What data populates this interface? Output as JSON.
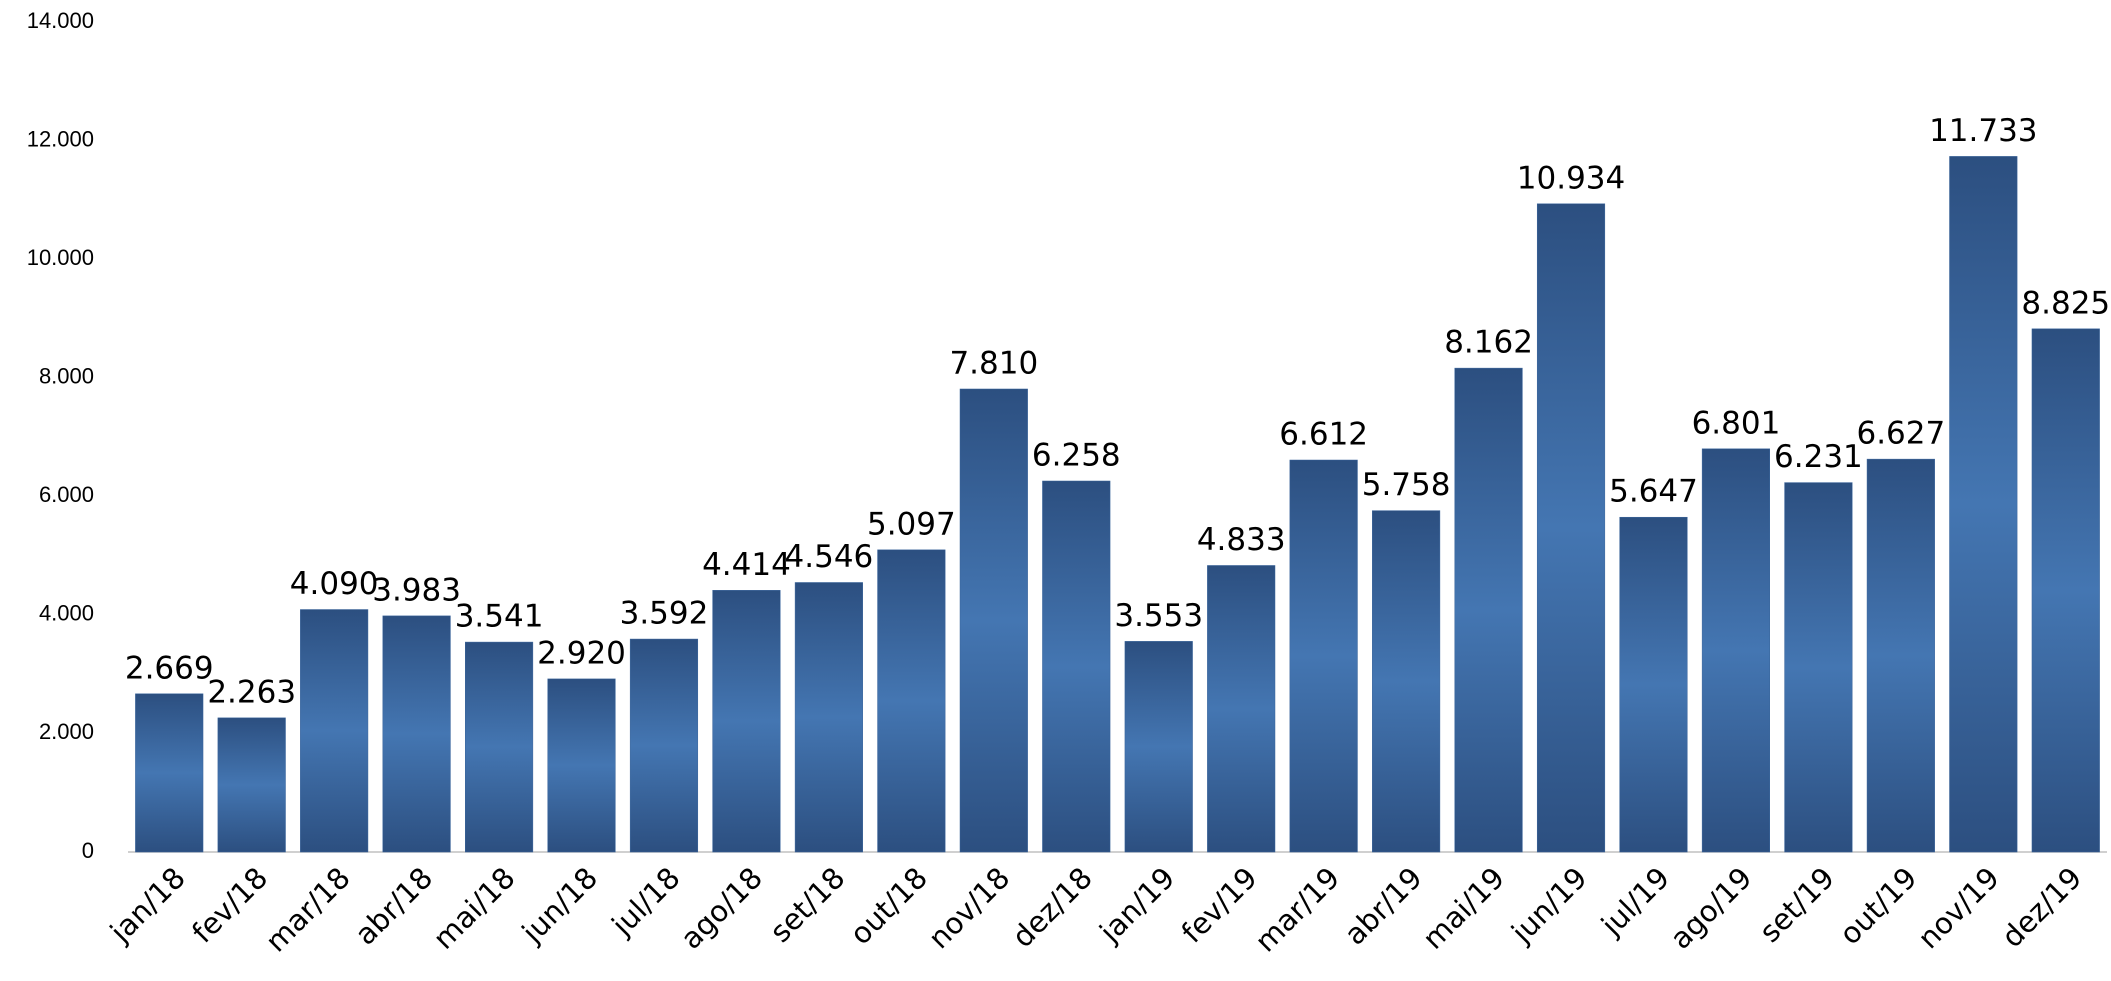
{
  "chart_data": {
    "type": "bar",
    "categories": [
      "jan/18",
      "fev/18",
      "mar/18",
      "abr/18",
      "mai/18",
      "jun/18",
      "jul/18",
      "ago/18",
      "set/18",
      "out/18",
      "nov/18",
      "dez/18",
      "jan/19",
      "fev/19",
      "mar/19",
      "abr/19",
      "mai/19",
      "jun/19",
      "jul/19",
      "ago/19",
      "set/19",
      "out/19",
      "nov/19",
      "dez/19"
    ],
    "values": [
      2669,
      2263,
      4090,
      3983,
      3541,
      2920,
      3592,
      4414,
      4546,
      5097,
      7810,
      6258,
      3553,
      4833,
      6612,
      5758,
      8162,
      10934,
      5647,
      6801,
      6231,
      6627,
      11733,
      8825
    ],
    "value_labels": [
      "2.669",
      "2.263",
      "4.090",
      "3.983",
      "3.541",
      "2.920",
      "3.592",
      "4.414",
      "4.546",
      "5.097",
      "7.810",
      "6.258",
      "3.553",
      "4.833",
      "6.612",
      "5.758",
      "8.162",
      "10.934",
      "5.647",
      "6.801",
      "6.231",
      "6.627",
      "11.733",
      "8.825"
    ],
    "color": "#3a659c",
    "ylim": [
      0,
      14000
    ],
    "yticks": [
      0,
      {
        "value": 2000,
        "label": "2.000"
      },
      {
        "value": 4000,
        "label": "4.000"
      },
      {
        "value": 6000,
        "label": "6.000"
      },
      {
        "value": 8000,
        "label": "8.000"
      },
      {
        "value": 10000,
        "label": "10.000"
      },
      {
        "value": 12000,
        "label": "12.000"
      },
      {
        "value": 14000,
        "label": "14.000"
      }
    ],
    "grid": false
  }
}
